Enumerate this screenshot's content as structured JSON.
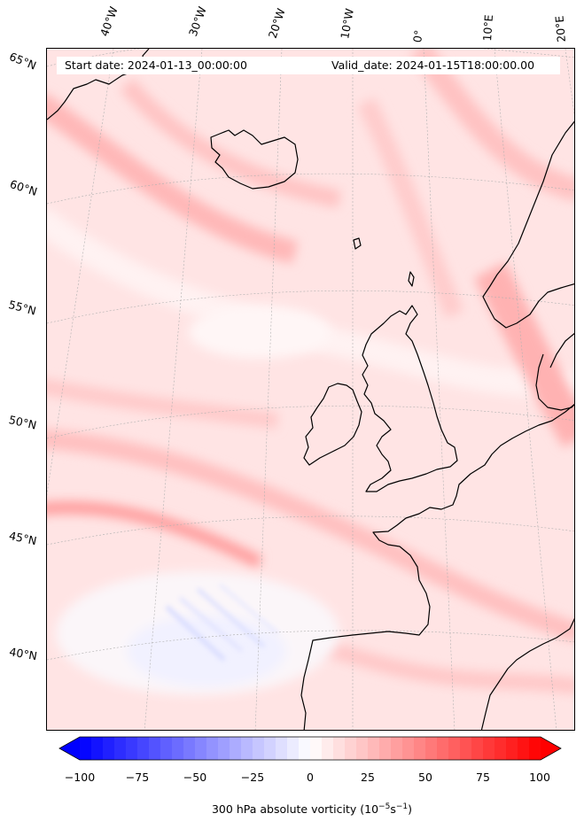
{
  "header": {
    "start_date": "Start date: 2024-01-13_00:00:00",
    "valid_date": "Valid_date: 2024-01-15T18:00:00.00"
  },
  "longitude_labels": [
    "40°W",
    "30°W",
    "20°W",
    "10°W",
    "0°",
    "10°E",
    "20°E"
  ],
  "latitude_labels": [
    "65°N",
    "60°N",
    "55°N",
    "50°N",
    "45°N",
    "40°N"
  ],
  "colorbar": {
    "ticks": [
      "−100",
      "−75",
      "−50",
      "−25",
      "0",
      "25",
      "50",
      "75",
      "100"
    ],
    "min": -100,
    "max": 100,
    "label": "300 hPa absolute vorticity (10",
    "label_exp1": "−5",
    "label_mid": "s",
    "label_exp2": "−1",
    "label_end": ")",
    "colormap": "bwr",
    "extend": "both"
  },
  "colors": {
    "coastline": "#000000",
    "gridlines": "#b0b0b0",
    "low": "#0000ff",
    "mid": "#ffffff",
    "high": "#ff0000"
  }
}
